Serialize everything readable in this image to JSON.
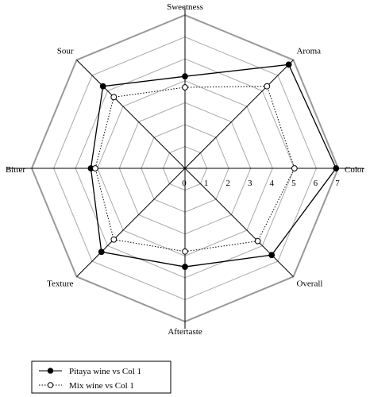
{
  "chart_data": {
    "type": "radar",
    "categories": [
      "Sweetness",
      "Aroma",
      "Color",
      "Overall",
      "Aftertaste",
      "Texture",
      "Bitter",
      "Sour"
    ],
    "scale": {
      "min": 0,
      "max": 7,
      "ticks": [
        "0",
        "1",
        "2",
        "3",
        "4",
        "5",
        "6",
        "7"
      ]
    },
    "series": [
      {
        "name": "Pitaya wine vs Col 1",
        "values": [
          4.2,
          6.7,
          6.9,
          5.6,
          4.5,
          5.4,
          4.3,
          5.3
        ],
        "marker": "filled-circle",
        "line": "solid"
      },
      {
        "name": "Mix wine vs Col 1",
        "values": [
          3.7,
          5.3,
          5.0,
          4.7,
          3.8,
          4.6,
          4.1,
          4.6
        ],
        "marker": "open-circle",
        "line": "dotted"
      }
    ],
    "grid": true,
    "legend": "bottom-left",
    "colors": {
      "line": "#000000",
      "grid": "#aaaaaa",
      "outer_ring": "#999999",
      "axis": "#000000"
    }
  }
}
